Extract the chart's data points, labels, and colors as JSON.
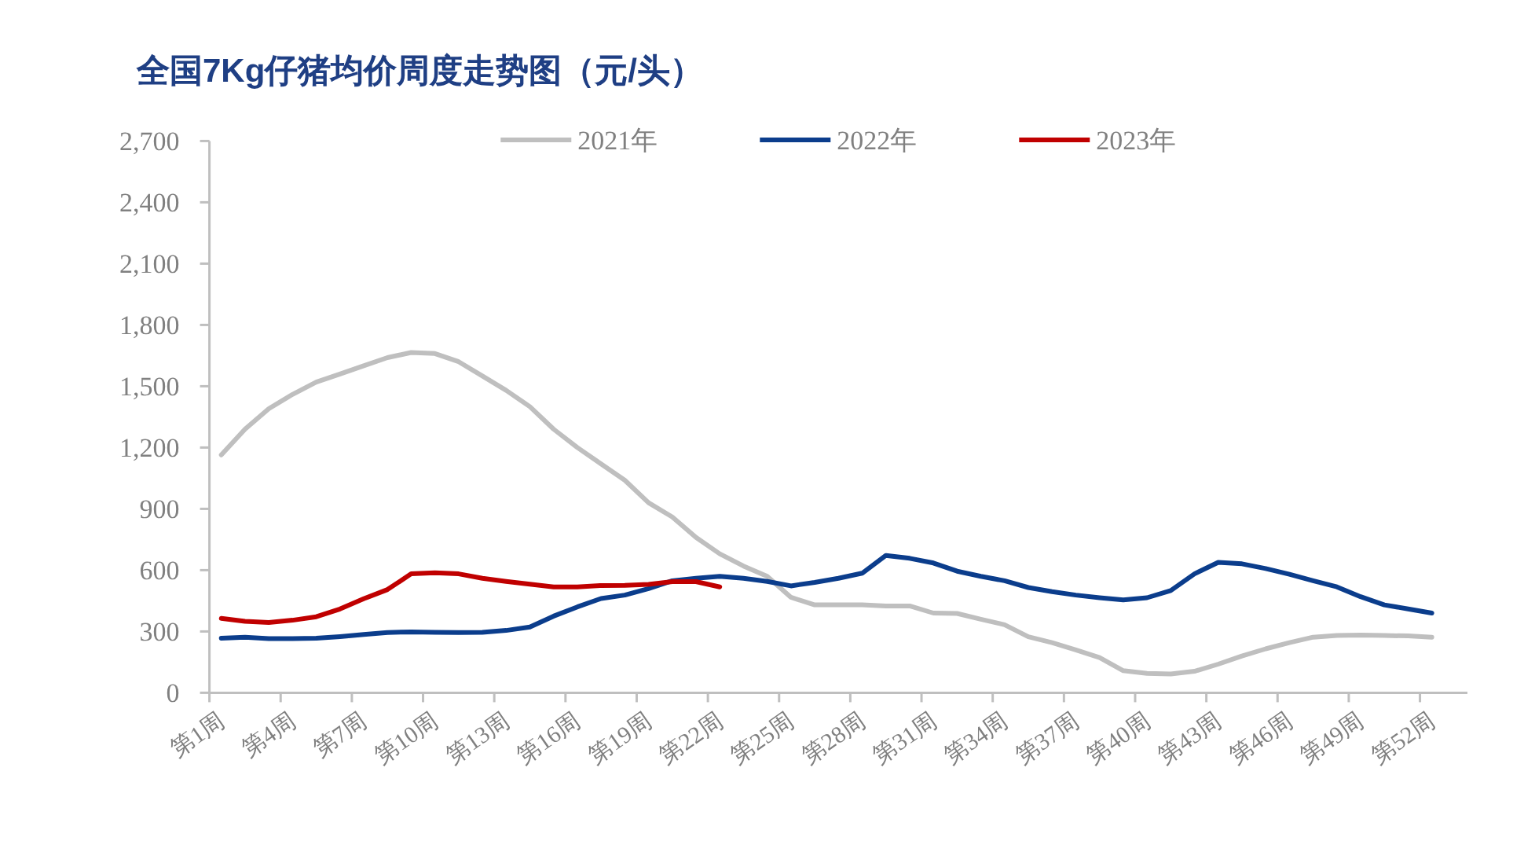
{
  "chart_data": {
    "type": "line",
    "title": "全国7Kg仔猪均价周度走势图（元/头）",
    "categories": [
      "第1周",
      null,
      null,
      "第4周",
      null,
      null,
      "第7周",
      null,
      null,
      "第10周",
      null,
      null,
      "第13周",
      null,
      null,
      "第16周",
      null,
      null,
      "第19周",
      null,
      null,
      "第22周",
      null,
      null,
      "第25周",
      null,
      null,
      "第28周",
      null,
      null,
      "第31周",
      null,
      null,
      "第34周",
      null,
      null,
      "第37周",
      null,
      null,
      "第40周",
      null,
      null,
      "第43周",
      null,
      null,
      "第46周",
      null,
      null,
      "第49周",
      null,
      null,
      "第52周",
      null
    ],
    "series": [
      {
        "name": "2021年",
        "color": "#bfbfbf",
        "values": [
          1164,
          1290,
          1390,
          1460,
          1520,
          1560,
          1600,
          1640,
          1665,
          1660,
          1620,
          1550,
          1480,
          1400,
          1290,
          1200,
          1120,
          1040,
          930,
          860,
          760,
          680,
          620,
          570,
          467,
          430,
          430,
          430,
          425,
          425,
          390,
          388,
          360,
          333,
          274,
          245,
          210,
          172,
          108,
          95,
          92,
          105,
          140,
          180,
          215,
          245,
          272,
          280,
          282,
          280,
          278,
          272,
          null
        ]
      },
      {
        "name": "2022年",
        "color": "#0b3d8c",
        "values": [
          267,
          272,
          265,
          265,
          267,
          275,
          285,
          295,
          298,
          296,
          295,
          296,
          305,
          322,
          375,
          420,
          461,
          478,
          510,
          548,
          560,
          570,
          560,
          545,
          523,
          540,
          560,
          585,
          672,
          658,
          635,
          595,
          570,
          548,
          515,
          495,
          478,
          465,
          454,
          465,
          500,
          582,
          638,
          631,
          608,
          580,
          548,
          518,
          470,
          430,
          410,
          390,
          null
        ]
      },
      {
        "name": "2023年",
        "color": "#c00000",
        "values": [
          364,
          350,
          344,
          355,
          372,
          410,
          460,
          505,
          582,
          587,
          582,
          560,
          545,
          531,
          518,
          518,
          525,
          526,
          530,
          544,
          544,
          518,
          null,
          null,
          null,
          null,
          null,
          null,
          null,
          null,
          null,
          null,
          null,
          null,
          null,
          null,
          null,
          null,
          null,
          null,
          null,
          null,
          null,
          null,
          null,
          null,
          null,
          null,
          null,
          null,
          null,
          null,
          null
        ]
      }
    ],
    "ylim": [
      0,
      2700
    ],
    "yticks": [
      0,
      300,
      600,
      900,
      {
        "value": 1200,
        "label": "1,200"
      },
      {
        "value": 1500,
        "label": "1,500"
      },
      {
        "value": 1800,
        "label": "1,800"
      },
      {
        "value": 2100,
        "label": "2,100"
      },
      {
        "value": 2400,
        "label": "2,400"
      },
      {
        "value": 2700,
        "label": "2,700"
      }
    ],
    "legend": "top",
    "grid": false,
    "line_style": "solid"
  }
}
